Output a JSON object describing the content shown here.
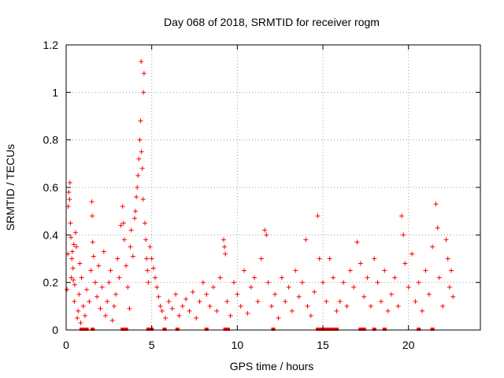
{
  "chart_data": {
    "type": "scatter",
    "title": "Day 068 of 2018, SRMTID for receiver rogm",
    "xlabel": "GPS time / hours",
    "ylabel": "SRMTID / TECUs",
    "xlim": [
      0,
      24.2
    ],
    "ylim": [
      0,
      1.2
    ],
    "xticks": [
      0,
      5,
      10,
      15,
      20
    ],
    "yticks": [
      0,
      0.2,
      0.4,
      0.6,
      0.8,
      1,
      1.2
    ],
    "ytick_labels": [
      "0",
      "0.2",
      "0.4",
      "0.6",
      "0.8",
      "1",
      "1.2"
    ],
    "grid": true,
    "marker": "+",
    "color": "#ff0000",
    "series": [
      {
        "values_note_free": true,
        "points": [
          [
            0.05,
            0.17
          ],
          [
            0.1,
            0.32
          ],
          [
            0.12,
            0.52
          ],
          [
            0.15,
            0.58
          ],
          [
            0.2,
            0.55
          ],
          [
            0.22,
            0.62
          ],
          [
            0.25,
            0.45
          ],
          [
            0.28,
            0.39
          ],
          [
            0.3,
            0.22
          ],
          [
            0.33,
            0.3
          ],
          [
            0.36,
            0.33
          ],
          [
            0.4,
            0.26
          ],
          [
            0.42,
            0.21
          ],
          [
            0.45,
            0.36
          ],
          [
            0.48,
            0.12
          ],
          [
            0.5,
            0.19
          ],
          [
            0.55,
            0.41
          ],
          [
            0.6,
            0.35
          ],
          [
            0.65,
            0.05
          ],
          [
            0.7,
            0.08
          ],
          [
            0.75,
            0.15
          ],
          [
            0.8,
            0.28
          ],
          [
            0.85,
            0.03
          ],
          [
            0.9,
            0.22
          ],
          [
            1.0,
            0.1
          ],
          [
            1.1,
            0.06
          ],
          [
            1.2,
            0.17
          ],
          [
            1.35,
            0.12
          ],
          [
            1.45,
            0.25
          ],
          [
            1.5,
            0.54
          ],
          [
            1.52,
            0.48
          ],
          [
            1.55,
            0.37
          ],
          [
            1.6,
            0.31
          ],
          [
            1.7,
            0.2
          ],
          [
            1.8,
            0.14
          ],
          [
            1.9,
            0.27
          ],
          [
            2.0,
            0.09
          ],
          [
            2.1,
            0.18
          ],
          [
            2.2,
            0.33
          ],
          [
            2.3,
            0.06
          ],
          [
            2.4,
            0.12
          ],
          [
            2.5,
            0.2
          ],
          [
            2.6,
            0.25
          ],
          [
            2.7,
            0.04
          ],
          [
            2.8,
            0.1
          ],
          [
            2.9,
            0.15
          ],
          [
            3.0,
            0.3
          ],
          [
            3.1,
            0.22
          ],
          [
            3.2,
            0.44
          ],
          [
            3.3,
            0.52
          ],
          [
            3.35,
            0.45
          ],
          [
            3.4,
            0.38
          ],
          [
            3.5,
            0.27
          ],
          [
            3.6,
            0.18
          ],
          [
            3.7,
            0.09
          ],
          [
            3.75,
            0.35
          ],
          [
            3.8,
            0.42
          ],
          [
            3.9,
            0.31
          ],
          [
            4.0,
            0.47
          ],
          [
            4.05,
            0.5
          ],
          [
            4.1,
            0.56
          ],
          [
            4.15,
            0.6
          ],
          [
            4.2,
            0.65
          ],
          [
            4.25,
            0.72
          ],
          [
            4.3,
            0.8
          ],
          [
            4.35,
            0.88
          ],
          [
            4.38,
            1.13
          ],
          [
            4.4,
            0.75
          ],
          [
            4.45,
            0.68
          ],
          [
            4.5,
            0.55
          ],
          [
            4.52,
            1.0
          ],
          [
            4.55,
            1.08
          ],
          [
            4.6,
            0.45
          ],
          [
            4.65,
            0.38
          ],
          [
            4.7,
            0.3
          ],
          [
            4.75,
            0.25
          ],
          [
            4.8,
            0.2
          ],
          [
            4.9,
            0.35
          ],
          [
            5.0,
            0.3
          ],
          [
            5.1,
            0.26
          ],
          [
            5.2,
            0.22
          ],
          [
            5.3,
            0.18
          ],
          [
            5.4,
            0.14
          ],
          [
            5.5,
            0.1
          ],
          [
            5.6,
            0.08
          ],
          [
            5.8,
            0.05
          ],
          [
            6.0,
            0.12
          ],
          [
            6.2,
            0.09
          ],
          [
            6.4,
            0.15
          ],
          [
            6.6,
            0.06
          ],
          [
            6.8,
            0.1
          ],
          [
            7.0,
            0.13
          ],
          [
            7.2,
            0.08
          ],
          [
            7.4,
            0.16
          ],
          [
            7.6,
            0.05
          ],
          [
            7.8,
            0.12
          ],
          [
            8.0,
            0.2
          ],
          [
            8.2,
            0.15
          ],
          [
            8.4,
            0.1
          ],
          [
            8.6,
            0.18
          ],
          [
            8.8,
            0.08
          ],
          [
            9.0,
            0.22
          ],
          [
            9.2,
            0.38
          ],
          [
            9.25,
            0.35
          ],
          [
            9.3,
            0.32
          ],
          [
            9.4,
            0.12
          ],
          [
            9.6,
            0.06
          ],
          [
            9.8,
            0.2
          ],
          [
            10.0,
            0.15
          ],
          [
            10.2,
            0.1
          ],
          [
            10.4,
            0.25
          ],
          [
            10.6,
            0.07
          ],
          [
            10.8,
            0.18
          ],
          [
            11.0,
            0.22
          ],
          [
            11.2,
            0.12
          ],
          [
            11.4,
            0.3
          ],
          [
            11.6,
            0.42
          ],
          [
            11.7,
            0.4
          ],
          [
            11.8,
            0.2
          ],
          [
            12.0,
            0.1
          ],
          [
            12.2,
            0.15
          ],
          [
            12.4,
            0.05
          ],
          [
            12.6,
            0.22
          ],
          [
            12.8,
            0.12
          ],
          [
            13.0,
            0.18
          ],
          [
            13.2,
            0.08
          ],
          [
            13.4,
            0.25
          ],
          [
            13.6,
            0.14
          ],
          [
            13.8,
            0.2
          ],
          [
            14.0,
            0.38
          ],
          [
            14.1,
            0.1
          ],
          [
            14.3,
            0.06
          ],
          [
            14.5,
            0.16
          ],
          [
            14.7,
            0.48
          ],
          [
            14.8,
            0.3
          ],
          [
            15.0,
            0.2
          ],
          [
            15.2,
            0.12
          ],
          [
            15.4,
            0.3
          ],
          [
            15.6,
            0.22
          ],
          [
            15.8,
            0.08
          ],
          [
            16.0,
            0.12
          ],
          [
            16.2,
            0.2
          ],
          [
            16.4,
            0.1
          ],
          [
            16.6,
            0.25
          ],
          [
            16.8,
            0.18
          ],
          [
            17.0,
            0.37
          ],
          [
            17.2,
            0.28
          ],
          [
            17.4,
            0.14
          ],
          [
            17.6,
            0.22
          ],
          [
            17.8,
            0.1
          ],
          [
            18.0,
            0.3
          ],
          [
            18.2,
            0.2
          ],
          [
            18.4,
            0.12
          ],
          [
            18.6,
            0.25
          ],
          [
            18.8,
            0.08
          ],
          [
            19.0,
            0.15
          ],
          [
            19.2,
            0.22
          ],
          [
            19.4,
            0.1
          ],
          [
            19.6,
            0.48
          ],
          [
            19.7,
            0.4
          ],
          [
            19.8,
            0.28
          ],
          [
            20.0,
            0.18
          ],
          [
            20.2,
            0.32
          ],
          [
            20.4,
            0.12
          ],
          [
            20.6,
            0.2
          ],
          [
            20.8,
            0.08
          ],
          [
            21.0,
            0.25
          ],
          [
            21.2,
            0.15
          ],
          [
            21.4,
            0.35
          ],
          [
            21.6,
            0.53
          ],
          [
            21.7,
            0.43
          ],
          [
            21.8,
            0.22
          ],
          [
            22.0,
            0.1
          ],
          [
            22.2,
            0.38
          ],
          [
            22.3,
            0.3
          ],
          [
            22.4,
            0.18
          ],
          [
            22.5,
            0.25
          ],
          [
            22.6,
            0.14
          ]
        ]
      }
    ],
    "zero_markers_x": [
      0.9,
      1.0,
      1.1,
      1.2,
      1.55,
      3.3,
      3.4,
      3.5,
      4.8,
      5.0,
      5.75,
      6.5,
      8.2,
      9.3,
      9.45,
      12.1,
      14.7,
      14.9,
      15.0,
      15.1,
      15.2,
      15.3,
      15.4,
      15.6,
      15.8,
      17.2,
      17.4,
      18.0,
      18.6,
      20.6,
      21.4
    ]
  }
}
